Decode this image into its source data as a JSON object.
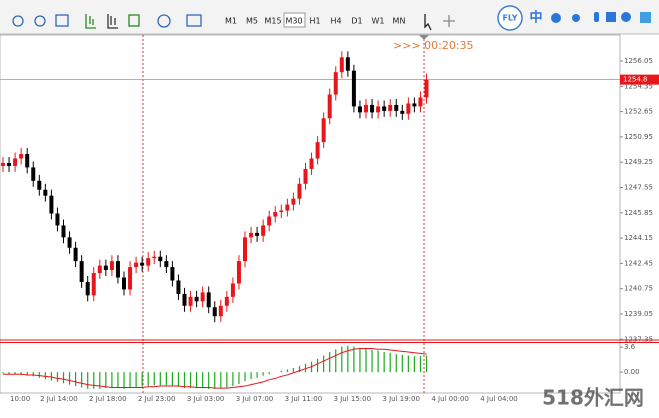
{
  "toolbar": {
    "timeframes": [
      "M1",
      "M5",
      "M15",
      "M30",
      "H1",
      "H4",
      "D1",
      "W1",
      "MN"
    ],
    "selected_index": 3,
    "logo": "FLY",
    "ime": "中"
  },
  "chart_data": [
    {
      "type": "candlestick",
      "timer": ">>> 00:20:35",
      "up_color": "#e8161b",
      "down_color": "#000000",
      "ylim": [
        1237.3,
        1257.8
      ],
      "yticks": [
        1256.05,
        1254.35,
        1252.65,
        1250.95,
        1249.25,
        1247.55,
        1245.85,
        1244.15,
        1242.45,
        1240.75,
        1239.05,
        1237.35
      ],
      "current_price": 1254.8,
      "x_labels": [
        "10:00",
        "2 Jul 14:00",
        "2 Jul 18:00",
        "2 Jul 23:00",
        "3 Jul 03:00",
        "3 Jul 07:00",
        "3 Jul 11:00",
        "3 Jul 15:00",
        "3 Jul 19:00",
        "4 Jul 00:00",
        "4 Jul 04:00"
      ],
      "open": [
        1249.0,
        1249.2,
        1249.0,
        1249.5,
        1249.8,
        1248.9,
        1248.0,
        1247.4,
        1247.0,
        1245.8,
        1245.0,
        1244.2,
        1243.5,
        1242.6,
        1241.2,
        1240.3,
        1241.8,
        1242.3,
        1242.0,
        1242.6,
        1241.5,
        1240.7,
        1242.2,
        1242.5,
        1242.3,
        1242.8,
        1242.9,
        1242.6,
        1242.2,
        1241.3,
        1240.4,
        1239.6,
        1240.2,
        1239.9,
        1240.5,
        1239.5,
        1238.9,
        1239.6,
        1240.2,
        1241.1,
        1242.6,
        1244.2,
        1244.5,
        1244.3,
        1245.0,
        1245.6,
        1245.9,
        1246.0,
        1246.4,
        1246.8,
        1247.8,
        1248.8,
        1249.5,
        1250.6,
        1252.2,
        1253.8,
        1255.3,
        1256.3,
        1255.4,
        1253.0,
        1252.6,
        1253.1,
        1252.6,
        1253.0,
        1252.7,
        1253.1,
        1252.7,
        1252.5,
        1253.2,
        1253.0,
        1253.6
      ],
      "high": [
        1249.6,
        1249.6,
        1249.9,
        1250.2,
        1250.2,
        1249.3,
        1248.4,
        1247.8,
        1247.4,
        1246.2,
        1245.4,
        1244.6,
        1243.9,
        1243.0,
        1241.6,
        1242.2,
        1242.7,
        1242.7,
        1243.0,
        1243.0,
        1241.9,
        1242.6,
        1242.9,
        1242.9,
        1243.2,
        1243.3,
        1243.3,
        1243.0,
        1242.6,
        1241.7,
        1240.8,
        1240.6,
        1240.6,
        1240.9,
        1240.9,
        1239.9,
        1240.0,
        1240.6,
        1241.5,
        1243.0,
        1244.6,
        1244.9,
        1244.9,
        1245.4,
        1246.0,
        1246.3,
        1246.4,
        1246.8,
        1247.2,
        1248.2,
        1249.2,
        1249.9,
        1251.0,
        1252.6,
        1254.2,
        1255.7,
        1256.7,
        1256.7,
        1255.8,
        1253.4,
        1253.5,
        1253.5,
        1253.4,
        1253.4,
        1253.5,
        1253.5,
        1253.1,
        1253.6,
        1253.6,
        1254.0,
        1255.2
      ],
      "low": [
        1248.6,
        1248.6,
        1248.6,
        1249.1,
        1248.5,
        1247.6,
        1247.0,
        1246.6,
        1245.4,
        1244.6,
        1243.8,
        1243.1,
        1242.2,
        1240.8,
        1239.9,
        1239.9,
        1241.4,
        1241.6,
        1241.6,
        1241.1,
        1240.3,
        1240.3,
        1241.8,
        1241.9,
        1241.9,
        1242.4,
        1242.2,
        1241.8,
        1240.9,
        1240.0,
        1239.2,
        1239.2,
        1239.5,
        1239.5,
        1239.1,
        1238.5,
        1238.5,
        1239.2,
        1239.8,
        1240.7,
        1242.2,
        1243.8,
        1243.9,
        1243.9,
        1244.6,
        1245.2,
        1245.5,
        1245.6,
        1246.0,
        1246.4,
        1247.4,
        1248.4,
        1249.1,
        1250.2,
        1251.8,
        1253.4,
        1254.9,
        1255.0,
        1252.6,
        1252.2,
        1252.2,
        1252.2,
        1252.2,
        1252.3,
        1252.3,
        1252.3,
        1252.1,
        1252.1,
        1252.6,
        1252.6,
        1253.2
      ],
      "close": [
        1249.2,
        1249.0,
        1249.5,
        1249.8,
        1248.9,
        1248.0,
        1247.4,
        1247.0,
        1245.8,
        1245.0,
        1244.2,
        1243.5,
        1242.6,
        1241.2,
        1240.3,
        1241.8,
        1242.3,
        1242.0,
        1242.6,
        1241.5,
        1240.7,
        1242.2,
        1242.5,
        1242.3,
        1242.8,
        1242.9,
        1242.6,
        1242.2,
        1241.3,
        1240.4,
        1239.6,
        1240.2,
        1239.9,
        1240.5,
        1239.5,
        1238.9,
        1239.6,
        1240.2,
        1241.1,
        1242.6,
        1244.2,
        1244.5,
        1244.3,
        1245.0,
        1245.6,
        1245.9,
        1246.0,
        1246.4,
        1246.8,
        1247.8,
        1248.8,
        1249.5,
        1250.6,
        1252.2,
        1253.8,
        1255.3,
        1256.3,
        1255.4,
        1253.0,
        1252.6,
        1253.1,
        1252.6,
        1253.0,
        1252.7,
        1253.1,
        1252.7,
        1252.5,
        1253.2,
        1253.0,
        1253.6,
        1254.8
      ]
    },
    {
      "type": "macd",
      "color": "#1fa81f",
      "signal_color": "#e8161b",
      "ylim": [
        -3.0,
        4.2
      ],
      "yticks": [
        3.6,
        {
          "value": 0,
          "label": "0.00"
        }
      ],
      "values": [
        -0.2,
        -0.3,
        -0.3,
        -0.4,
        -0.5,
        -0.6,
        -0.8,
        -1.0,
        -1.2,
        -1.4,
        -1.6,
        -1.8,
        -2.0,
        -2.2,
        -2.4,
        -2.4,
        -2.4,
        -2.3,
        -2.3,
        -2.3,
        -2.4,
        -2.3,
        -2.2,
        -2.1,
        -2.0,
        -1.9,
        -1.9,
        -1.9,
        -2.0,
        -2.1,
        -2.3,
        -2.3,
        -2.3,
        -2.3,
        -2.4,
        -2.4,
        -2.3,
        -2.2,
        -2.0,
        -1.7,
        -1.3,
        -1.0,
        -0.8,
        -0.5,
        -0.3,
        0.0,
        0.2,
        0.4,
        0.6,
        0.9,
        1.2,
        1.5,
        1.9,
        2.4,
        2.9,
        3.3,
        3.7,
        3.8,
        3.7,
        3.5,
        3.4,
        3.2,
        3.1,
        2.9,
        2.8,
        2.6,
        2.5,
        2.4,
        2.3,
        2.3,
        2.4
      ],
      "signal": [
        -0.3,
        -0.3,
        -0.3,
        -0.3,
        -0.4,
        -0.4,
        -0.5,
        -0.6,
        -0.7,
        -0.9,
        -1.0,
        -1.2,
        -1.4,
        -1.6,
        -1.8,
        -1.9,
        -2.0,
        -2.1,
        -2.2,
        -2.2,
        -2.2,
        -2.2,
        -2.2,
        -2.2,
        -2.1,
        -2.1,
        -2.0,
        -2.0,
        -2.0,
        -2.0,
        -2.1,
        -2.1,
        -2.2,
        -2.2,
        -2.2,
        -2.3,
        -2.3,
        -2.3,
        -2.2,
        -2.1,
        -2.0,
        -1.8,
        -1.6,
        -1.4,
        -1.1,
        -0.9,
        -0.6,
        -0.4,
        -0.1,
        0.2,
        0.5,
        0.8,
        1.2,
        1.6,
        2.0,
        2.4,
        2.8,
        3.1,
        3.3,
        3.4,
        3.4,
        3.4,
        3.3,
        3.3,
        3.2,
        3.1,
        3.0,
        2.9,
        2.8,
        2.7,
        2.6
      ]
    }
  ],
  "watermark": "518外汇网"
}
